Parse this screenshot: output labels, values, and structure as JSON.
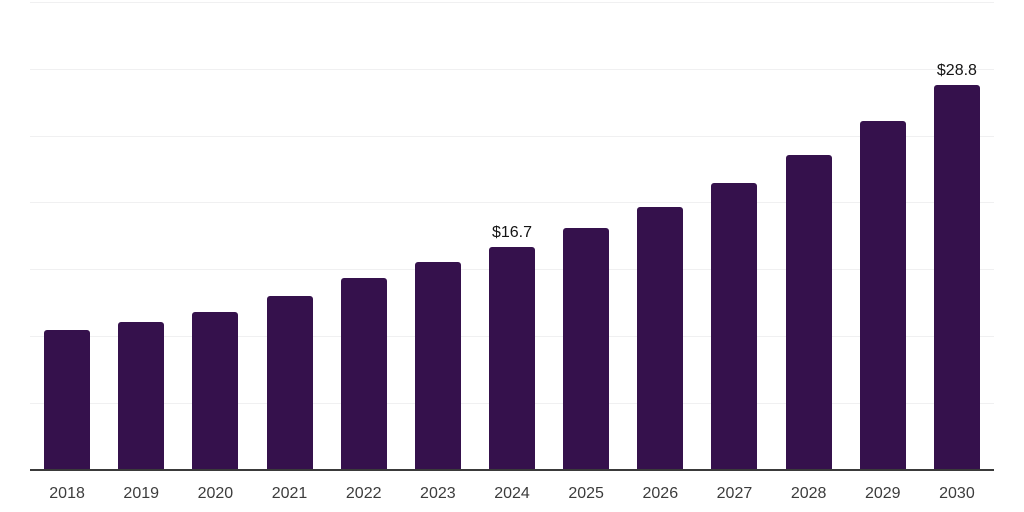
{
  "chart_data": {
    "type": "bar",
    "title": "",
    "xlabel": "",
    "ylabel": "",
    "categories": [
      "2018",
      "2019",
      "2020",
      "2021",
      "2022",
      "2023",
      "2024",
      "2025",
      "2026",
      "2027",
      "2028",
      "2029",
      "2030"
    ],
    "values": [
      10.5,
      11.1,
      11.8,
      13.0,
      14.4,
      15.6,
      16.7,
      18.1,
      19.7,
      21.5,
      23.6,
      26.1,
      28.8
    ],
    "data_labels": {
      "2024": "$16.7",
      "2030": "$28.8"
    },
    "ylim": [
      0,
      35
    ],
    "grid_step": 5,
    "grid": "horizontal gridlines only, no y-axis tick labels",
    "legend": "none",
    "colors": {
      "bar": "#35114C",
      "axis_line": "#3a3a3a",
      "gridline": "#f0f0f1",
      "tick_label": "#3c3c3c",
      "data_label": "#141414",
      "background": "#ffffff"
    }
  }
}
